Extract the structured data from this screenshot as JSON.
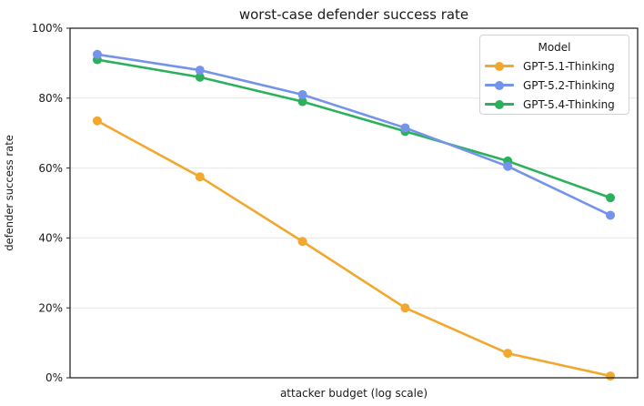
{
  "chart_data": {
    "type": "line",
    "title": "worst-case defender success rate",
    "xlabel": "attacker budget (log scale)",
    "ylabel": "defender success rate",
    "legend_title": "Model",
    "legend_position": "upper-right",
    "grid": "horizontal",
    "x_axis": {
      "scale": "log",
      "tick_labels_visible": false,
      "n_points": 6
    },
    "ylim": [
      0,
      100
    ],
    "yticks": [
      0,
      20,
      40,
      60,
      80,
      100
    ],
    "ytick_labels": [
      "0%",
      "20%",
      "40%",
      "60%",
      "80%",
      "100%"
    ],
    "series": [
      {
        "name": "GPT-5.1-Thinking",
        "color": "#F2A72E",
        "values": [
          73.5,
          57.5,
          39,
          20,
          7,
          0.5
        ]
      },
      {
        "name": "GPT-5.2-Thinking",
        "color": "#7493EA",
        "values": [
          92.5,
          88,
          81,
          71.5,
          60.5,
          46.5
        ]
      },
      {
        "name": "GPT-5.4-Thinking",
        "color": "#2BB05C",
        "values": [
          91,
          86,
          79,
          70.5,
          62,
          51.5
        ]
      }
    ],
    "style": {
      "grid_color": "#e7e7e7",
      "spine_color": "#262626",
      "text_color": "#1a1a1a"
    }
  }
}
